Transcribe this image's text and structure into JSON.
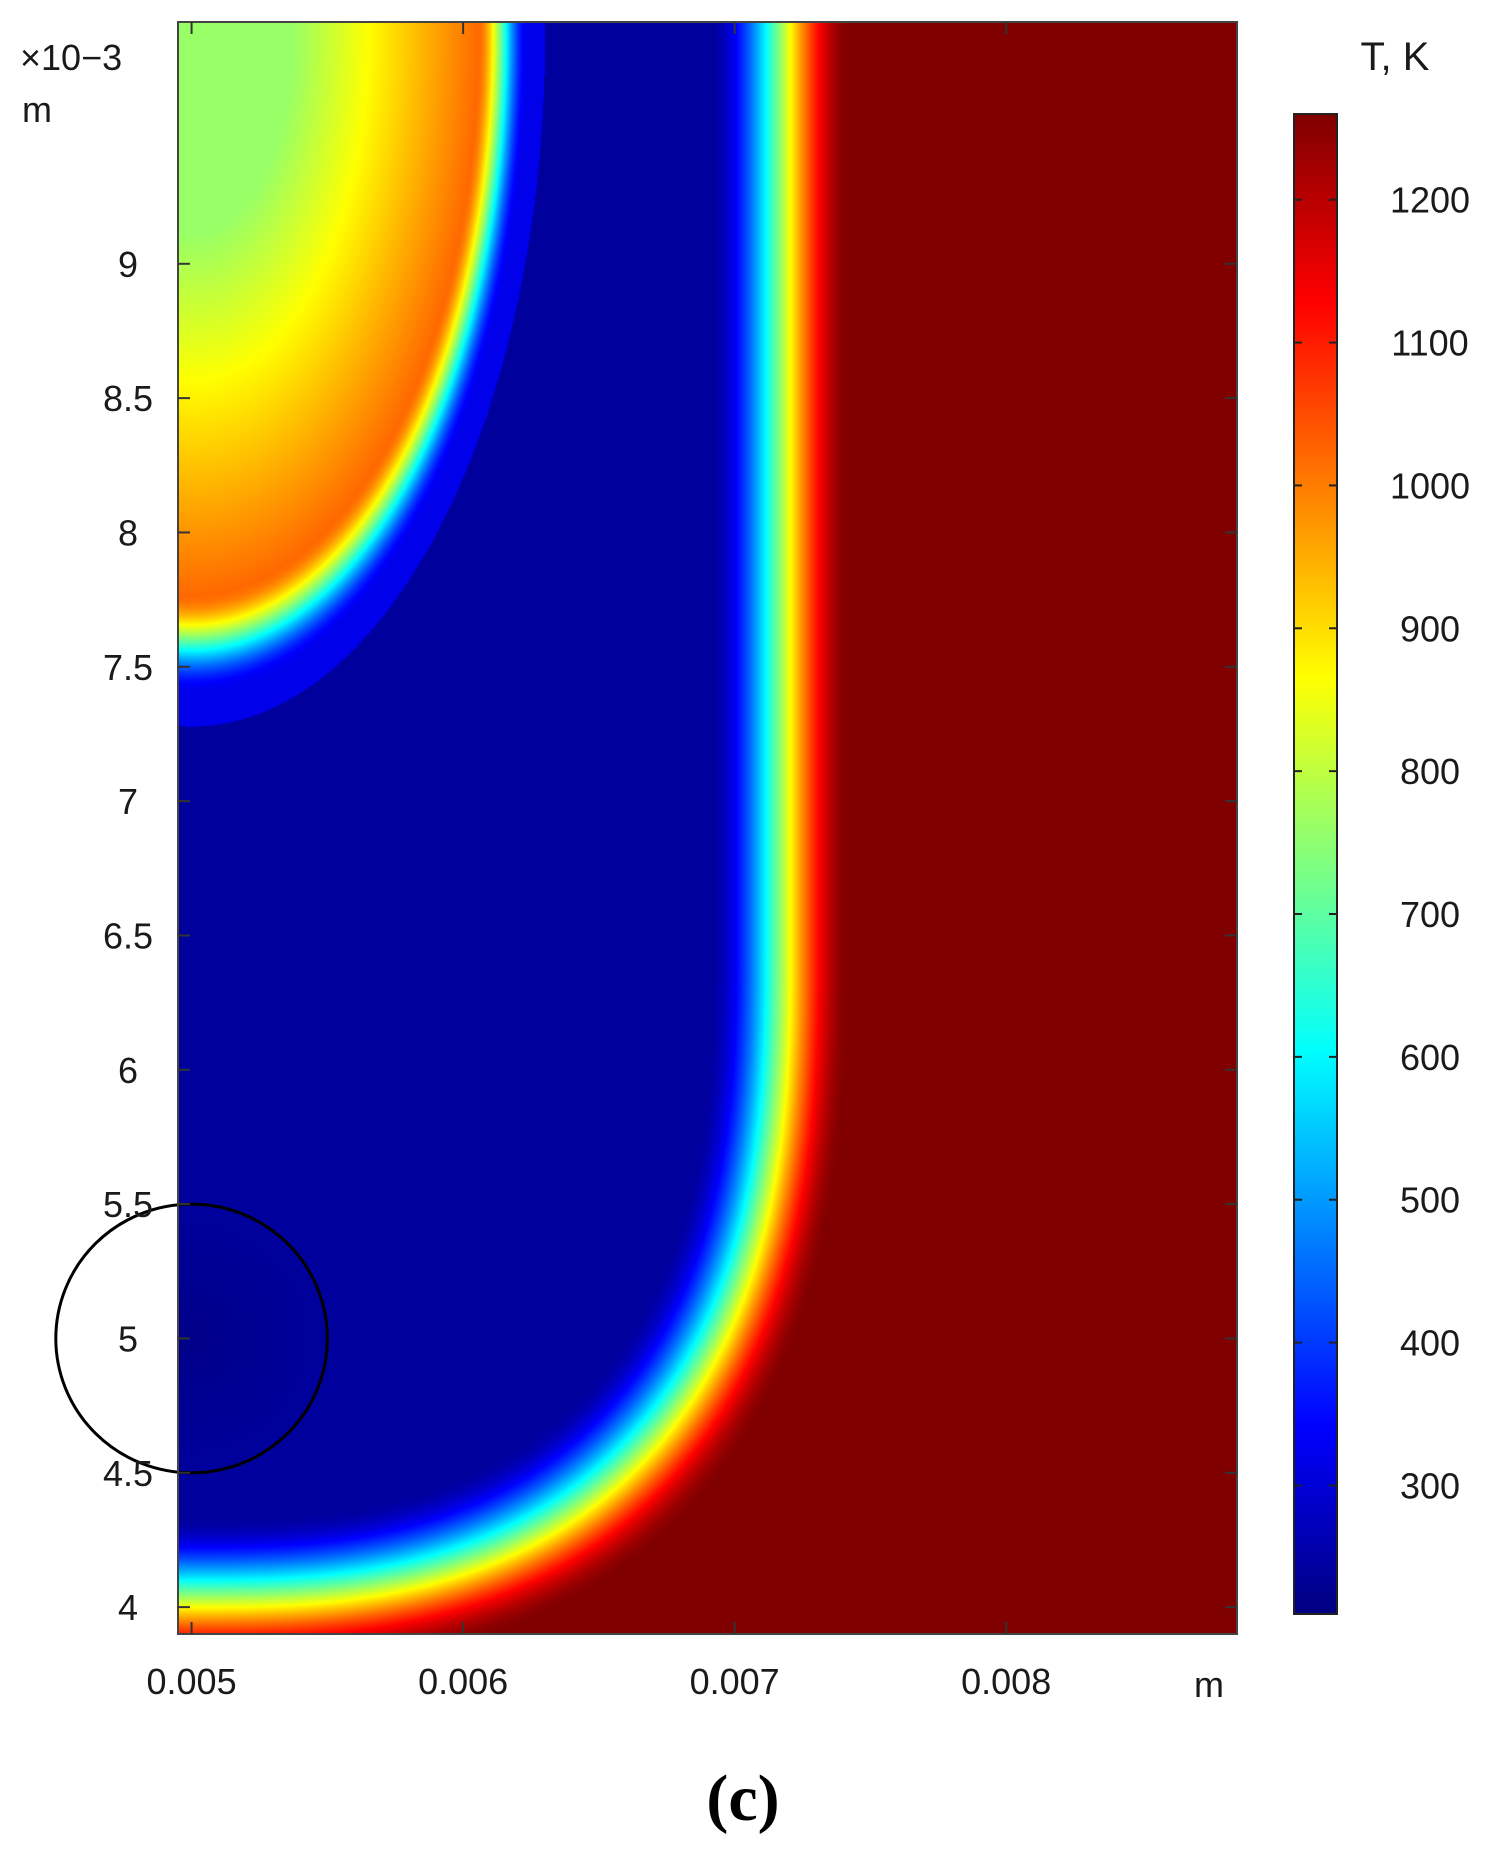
{
  "panel_label": "(c)",
  "chart_data": {
    "type": "heatmap",
    "title": "",
    "xlabel": "m",
    "ylabel": "m",
    "y_multiplier": "×10−3",
    "xlim": [
      0.00495,
      0.00885
    ],
    "ylim": [
      0.0039,
      0.0099
    ],
    "x_ticks": [
      0.005,
      0.006,
      0.007,
      0.008
    ],
    "x_tick_labels": [
      "0.005",
      "0.006",
      "0.007",
      "0.008"
    ],
    "y_ticks": [
      0.004,
      0.0045,
      0.005,
      0.0055,
      0.006,
      0.0065,
      0.007,
      0.0075,
      0.008,
      0.0085,
      0.009
    ],
    "y_tick_labels": [
      "4",
      "4.5",
      "5",
      "5.5",
      "6",
      "6.5",
      "7",
      "7.5",
      "8",
      "8.5",
      "9"
    ],
    "colorbar": {
      "label": "T, K",
      "range": [
        210,
        1260
      ],
      "ticks": [
        300,
        400,
        500,
        600,
        700,
        800,
        900,
        1000,
        1100,
        1200
      ],
      "tick_labels": [
        "300",
        "400",
        "500",
        "600",
        "700",
        "800",
        "900",
        "1000",
        "1100",
        "1200"
      ],
      "colormap": "jet"
    },
    "field": {
      "hot_region_temperature": 1260,
      "cold_region_temperature": 240,
      "hot_zone_start_temperature_contour_x_at_top": 0.0073,
      "hot_zone_start_temperature_contour_y_at_left": 0.004,
      "top_left_warm_spot": {
        "center": [
          0.005,
          0.00985
        ],
        "peak_temperature": 1000
      }
    },
    "annotations": [
      {
        "type": "circle",
        "center": [
          0.005,
          0.005
        ],
        "radius": 0.0005,
        "color": "#000000"
      }
    ],
    "grid": false
  }
}
